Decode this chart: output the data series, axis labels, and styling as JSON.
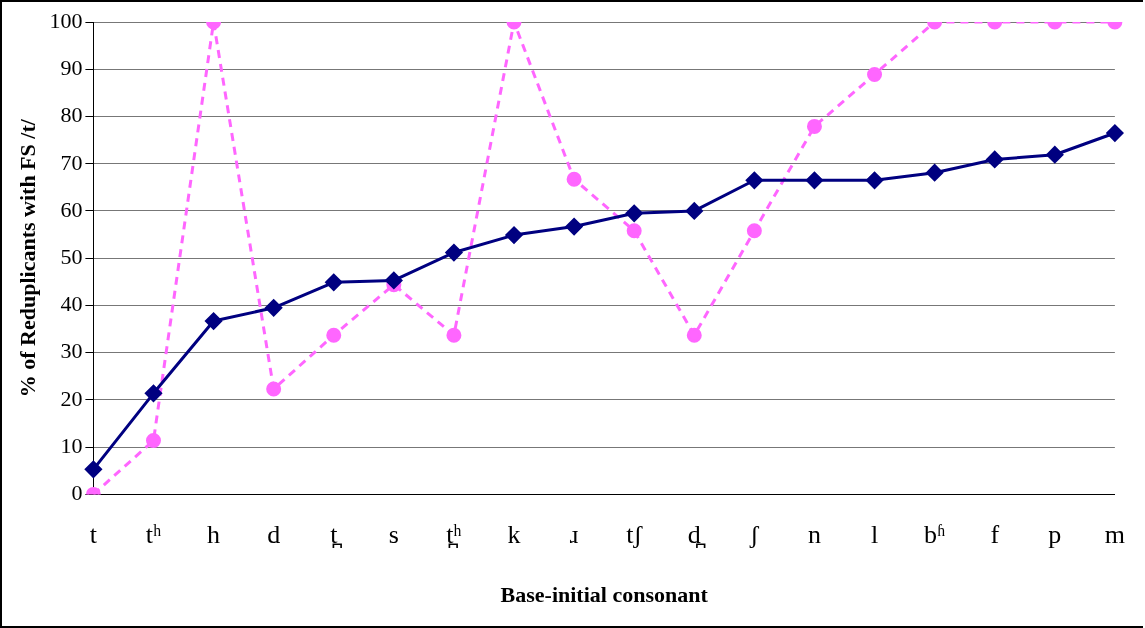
{
  "chart_data": {
    "type": "line",
    "xlabel": "Base-initial consonant",
    "ylabel": "% of Reduplicants with FS /t/",
    "categories": [
      "t",
      "tʰ",
      "h",
      "d",
      "t̪",
      "s",
      "t̪ʰ",
      "k",
      "ɹ",
      "tʃ",
      "d̪",
      "ʃ",
      "n",
      "l",
      "bʱ",
      "f",
      "p",
      "m"
    ],
    "series": [
      {
        "color": "#ff66ff",
        "marker": "circle",
        "line_style": "dashed",
        "values": [
          0,
          11.4,
          100,
          22.3,
          33.7,
          44.4,
          33.7,
          100,
          66.7,
          55.8,
          33.7,
          55.8,
          77.9,
          88.9,
          100,
          100,
          100,
          100
        ]
      },
      {
        "color": "#000080",
        "marker": "diamond",
        "line_style": "solid",
        "values": [
          5.3,
          21.4,
          36.7,
          39.5,
          44.9,
          45.3,
          51.2,
          54.9,
          56.7,
          59.5,
          60,
          66.5,
          66.5,
          66.5,
          68.1,
          70.9,
          71.9,
          76.5
        ]
      }
    ],
    "ylim": [
      0,
      100
    ],
    "yticks": [
      0,
      10,
      20,
      30,
      40,
      50,
      60,
      70,
      80,
      90,
      100
    ],
    "grid": "y",
    "legend": false
  }
}
